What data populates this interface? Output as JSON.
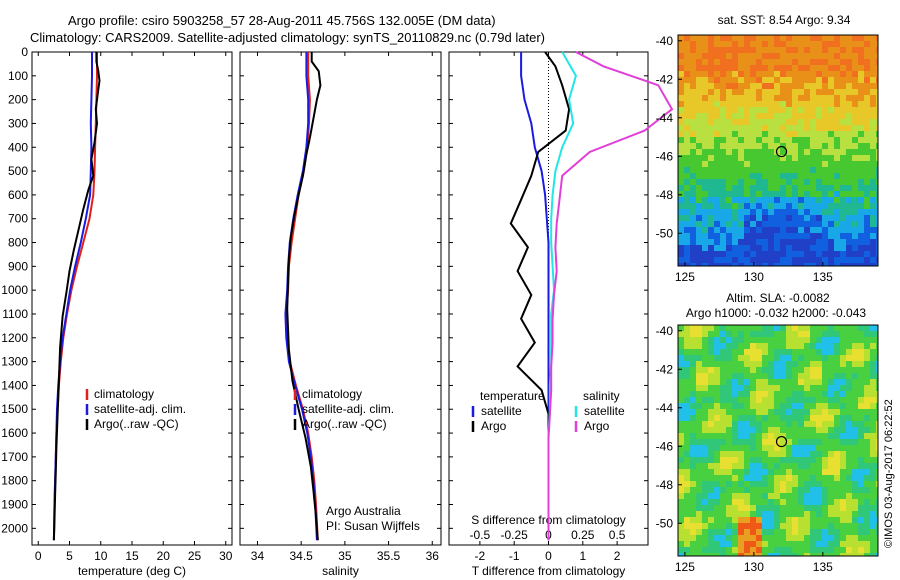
{
  "header": {
    "title_line1": "Argo profile: csiro 5903258_57 28-Aug-2011 45.756S 132.005E (DM data)",
    "title_line2": "Climatology: CARS2009. Satellite-adjusted climatology: synTS_20110829.nc (0.79d later)"
  },
  "colors": {
    "climatology": "#e0201a",
    "satellite": "#1a1ae0",
    "argo": "#000000",
    "sal_satellite": "#22e6e6",
    "sal_argo": "#e040d8"
  },
  "chart_data": [
    {
      "type": "line",
      "id": "temperature-profile",
      "xlabel": "temperature (deg C)",
      "ylabel": "",
      "xlim": [
        -1,
        31
      ],
      "ylim": [
        0,
        2070
      ],
      "y_inverted": true,
      "xticks": [
        0,
        5,
        10,
        15,
        20,
        25,
        30
      ],
      "yticks": [
        0,
        100,
        200,
        300,
        400,
        500,
        600,
        700,
        800,
        900,
        1000,
        1100,
        1200,
        1300,
        1400,
        1500,
        1600,
        1700,
        1800,
        1900,
        2000
      ],
      "legend": [
        "climatology",
        "satellite-adj. clim.",
        "Argo(..raw -QC)"
      ],
      "series": [
        {
          "name": "climatology",
          "x": [
            9.4,
            9.4,
            9.3,
            9.2,
            9.1,
            9.0,
            8.8,
            8.2,
            7.2,
            6.2,
            5.3,
            4.6,
            4.0,
            3.6,
            3.3,
            3.1,
            2.9,
            2.8,
            2.7,
            2.6,
            2.5
          ],
          "y": [
            0,
            100,
            200,
            300,
            400,
            500,
            600,
            700,
            800,
            900,
            1000,
            1100,
            1200,
            1300,
            1400,
            1500,
            1600,
            1700,
            1800,
            1900,
            2050
          ]
        },
        {
          "name": "satellite-adj. clim.",
          "x": [
            8.6,
            8.6,
            8.5,
            8.4,
            8.5,
            8.4,
            8.3,
            7.6,
            6.8,
            5.9,
            5.1,
            4.5,
            3.9,
            3.5,
            3.2,
            3.0,
            2.9,
            2.8,
            2.7,
            2.6,
            2.5
          ],
          "y": [
            0,
            100,
            200,
            300,
            400,
            500,
            600,
            700,
            800,
            900,
            1000,
            1100,
            1200,
            1300,
            1400,
            1500,
            1600,
            1700,
            1800,
            1900,
            2050
          ]
        },
        {
          "name": "Argo(..raw -QC)",
          "x": [
            9.3,
            9.3,
            9.6,
            9.8,
            9.5,
            9.2,
            9.4,
            9.0,
            8.5,
            8.8,
            8.0,
            7.2,
            6.5,
            5.7,
            5.0,
            4.5,
            3.9,
            3.5,
            3.3,
            3.1,
            2.9,
            2.8,
            2.7,
            2.6,
            2.5
          ],
          "y": [
            0,
            40,
            80,
            120,
            180,
            240,
            300,
            380,
            450,
            520,
            580,
            660,
            740,
            830,
            920,
            1010,
            1110,
            1240,
            1380,
            1520,
            1660,
            1760,
            1860,
            1960,
            2050
          ]
        }
      ]
    },
    {
      "type": "line",
      "id": "salinity-profile",
      "xlabel": "salinity",
      "xlim": [
        33.8,
        36.1
      ],
      "ylim": [
        0,
        2070
      ],
      "y_inverted": true,
      "xticks": [
        34,
        34.5,
        35,
        35.5,
        36
      ],
      "legend": [
        "climatology",
        "satellite-adj. clim.",
        "Argo(..raw -QC)"
      ],
      "annotations": [
        "Argo Australia",
        "PI: Susan Wijffels"
      ],
      "series": [
        {
          "name": "climatology",
          "x": [
            34.58,
            34.58,
            34.6,
            34.59,
            34.57,
            34.53,
            34.47,
            34.43,
            34.39,
            34.36,
            34.35,
            34.33,
            34.34,
            34.37,
            34.44,
            34.52,
            34.58,
            34.62,
            34.65,
            34.67,
            34.69
          ],
          "y": [
            0,
            100,
            200,
            300,
            400,
            500,
            600,
            700,
            800,
            900,
            1000,
            1100,
            1200,
            1300,
            1400,
            1500,
            1600,
            1700,
            1800,
            1900,
            2050
          ]
        },
        {
          "name": "satellite-adj. clim.",
          "x": [
            34.56,
            34.56,
            34.58,
            34.58,
            34.56,
            34.52,
            34.46,
            34.41,
            34.37,
            34.35,
            34.34,
            34.32,
            34.33,
            34.36,
            34.43,
            34.51,
            34.57,
            34.61,
            34.64,
            34.66,
            34.68
          ],
          "y": [
            0,
            100,
            200,
            300,
            400,
            500,
            600,
            700,
            800,
            900,
            1000,
            1100,
            1200,
            1300,
            1400,
            1500,
            1600,
            1700,
            1800,
            1900,
            2050
          ]
        },
        {
          "name": "Argo(..raw -QC)",
          "x": [
            34.62,
            34.62,
            34.7,
            34.72,
            34.68,
            34.64,
            34.6,
            34.56,
            34.52,
            34.47,
            34.42,
            34.38,
            34.36,
            34.35,
            34.34,
            34.36,
            34.4,
            34.47,
            34.55,
            34.61,
            34.64,
            34.67,
            34.69
          ],
          "y": [
            0,
            40,
            80,
            140,
            200,
            280,
            360,
            430,
            520,
            600,
            690,
            780,
            870,
            960,
            1080,
            1250,
            1380,
            1500,
            1620,
            1740,
            1840,
            1950,
            2050
          ]
        }
      ]
    },
    {
      "type": "line",
      "id": "difference-profile",
      "xlabel": "T difference from climatology",
      "xlabel_top": "S difference from climatology",
      "xlim": [
        -2.9,
        2.9
      ],
      "ylim": [
        0,
        2070
      ],
      "y_inverted": true,
      "xticks": [
        -2,
        -1,
        0,
        1,
        2
      ],
      "xticks_top": [
        -0.5,
        -0.25,
        0,
        0.25,
        0.5
      ],
      "legend_left_title": "temperature",
      "legend_right_title": "salinity",
      "legend": [
        "satellite",
        "Argo",
        "satellite",
        "Argo"
      ],
      "series": [
        {
          "name": "temperature satellite",
          "x": [
            -0.8,
            -0.8,
            -0.7,
            -0.5,
            -0.4,
            -0.2,
            -0.1,
            -0.05,
            0,
            0,
            0,
            0,
            0,
            0,
            0,
            0,
            0,
            0,
            0,
            0,
            0
          ],
          "y": [
            0,
            100,
            200,
            300,
            400,
            500,
            600,
            700,
            800,
            900,
            1000,
            1100,
            1200,
            1300,
            1400,
            1500,
            1600,
            1700,
            1800,
            1900,
            2050
          ]
        },
        {
          "name": "temperature Argo",
          "x": [
            -0.1,
            0.2,
            0.4,
            0.6,
            0.5,
            -0.3,
            -0.5,
            -0.8,
            -1.1,
            -0.6,
            -0.9,
            -0.5,
            -0.8,
            -0.4,
            -0.9,
            -0.2,
            0,
            0,
            0,
            0,
            0
          ],
          "y": [
            0,
            60,
            140,
            240,
            330,
            420,
            520,
            620,
            720,
            820,
            920,
            1020,
            1120,
            1220,
            1320,
            1420,
            1520,
            1620,
            1720,
            1850,
            2050
          ]
        },
        {
          "name": "salinity satellite",
          "x": [
            0.1,
            0.2,
            0.15,
            0.18,
            0.1,
            0.05,
            0.03,
            0.02,
            0.02,
            0.03,
            0.04,
            0.02,
            0.02,
            0.02,
            0.01,
            0.01,
            0,
            0,
            0,
            0,
            0
          ],
          "y": [
            0,
            100,
            200,
            300,
            400,
            500,
            600,
            700,
            800,
            900,
            1000,
            1100,
            1200,
            1300,
            1400,
            1500,
            1600,
            1700,
            1800,
            1900,
            2050
          ]
        },
        {
          "name": "salinity Argo",
          "x": [
            0.2,
            0.4,
            0.8,
            0.9,
            0.7,
            0.3,
            0.1,
            0.08,
            0.06,
            0.05,
            0.06,
            0.04,
            0.03,
            0.03,
            0.02,
            0.02,
            0.01,
            0,
            0,
            0,
            0
          ],
          "y": [
            0,
            60,
            140,
            240,
            330,
            420,
            520,
            620,
            720,
            820,
            920,
            1020,
            1120,
            1220,
            1320,
            1420,
            1520,
            1620,
            1720,
            1850,
            2050
          ]
        }
      ]
    },
    {
      "type": "heatmap",
      "id": "sst-map",
      "title": "sat. SST: 8.54 Argo: 9.34",
      "xlim": [
        124.5,
        139
      ],
      "ylim": [
        -51.7,
        -39.7
      ],
      "xticks": [
        125,
        130,
        135
      ],
      "yticks": [
        -40,
        -42,
        -44,
        -46,
        -48,
        -50
      ],
      "marker": {
        "lon": 132.005,
        "lat": -45.756
      }
    },
    {
      "type": "heatmap",
      "id": "sla-map",
      "title": "Altim. SLA: -0.0082",
      "subtitle": "Argo h1000: -0.032 h2000: -0.043",
      "xlim": [
        124.5,
        139
      ],
      "ylim": [
        -51.7,
        -39.7
      ],
      "xticks": [
        125,
        130,
        135
      ],
      "yticks": [
        -40,
        -42,
        -44,
        -46,
        -48,
        -50
      ],
      "marker": {
        "lon": 132.005,
        "lat": -45.756
      }
    }
  ],
  "watermark": "©IMOS 03-Aug-2017 06:22:52"
}
